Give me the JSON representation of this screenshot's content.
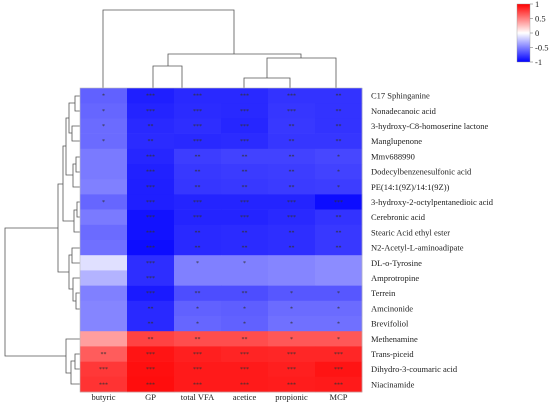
{
  "chart_data": {
    "type": "heatmap",
    "title": "",
    "xlabel": "",
    "ylabel": "",
    "color_scale": {
      "min": -1,
      "max": 1,
      "colors": [
        "#0000ff",
        "#ffffff",
        "#ff0000"
      ],
      "ticks": [
        "1",
        "0.5",
        "0",
        "-0.5",
        "-1"
      ]
    },
    "columns": [
      "butyric",
      "GP",
      "total VFA",
      "acetice",
      "propionic",
      "MCP"
    ],
    "rows": [
      "C17 Sphinganine",
      "Nonadecanoic acid",
      "3-hydroxy-C8-homoserine lactone",
      "Manglupenone",
      "Mmv688990",
      "Dodecylbenzenesulfonic acid",
      "PE(14:1(9Z)/14:1(9Z))",
      "3-hydroxy-2-octylpentanedioic acid",
      "Cerebronic acid",
      "Stearic Acid ethyl ester",
      "N2-Acetyl-L-aminoadipate",
      "DL-o-Tyrosine",
      "Amprotropine",
      "Terrein",
      "Amcinonide",
      "Brevifoliol",
      "Methenamine",
      "Trans-piceid",
      "Dihydro-3-coumaric acid",
      "Niacinamide"
    ],
    "values": [
      [
        -0.62,
        -0.88,
        -0.84,
        -0.84,
        -0.8,
        -0.8
      ],
      [
        -0.6,
        -0.86,
        -0.83,
        -0.84,
        -0.79,
        -0.8
      ],
      [
        -0.58,
        -0.84,
        -0.82,
        -0.85,
        -0.78,
        -0.8
      ],
      [
        -0.58,
        -0.83,
        -0.84,
        -0.83,
        -0.79,
        -0.79
      ],
      [
        -0.52,
        -0.85,
        -0.76,
        -0.74,
        -0.74,
        -0.72
      ],
      [
        -0.52,
        -0.87,
        -0.78,
        -0.77,
        -0.76,
        -0.74
      ],
      [
        -0.5,
        -0.88,
        -0.79,
        -0.78,
        -0.77,
        -0.76
      ],
      [
        -0.6,
        -0.88,
        -0.86,
        -0.86,
        -0.86,
        -0.95
      ],
      [
        -0.52,
        -0.93,
        -0.86,
        -0.86,
        -0.84,
        -0.8
      ],
      [
        -0.58,
        -0.93,
        -0.84,
        -0.83,
        -0.82,
        -0.78
      ],
      [
        -0.56,
        -0.95,
        -0.84,
        -0.83,
        -0.82,
        -0.78
      ],
      [
        -0.12,
        -0.82,
        -0.5,
        -0.5,
        -0.48,
        -0.45
      ],
      [
        -0.3,
        -0.82,
        -0.5,
        -0.5,
        -0.48,
        -0.45
      ],
      [
        -0.5,
        -0.9,
        -0.7,
        -0.7,
        -0.66,
        -0.66
      ],
      [
        -0.48,
        -0.84,
        -0.62,
        -0.63,
        -0.58,
        -0.58
      ],
      [
        -0.48,
        -0.84,
        -0.6,
        -0.62,
        -0.56,
        -0.56
      ],
      [
        0.38,
        0.74,
        0.7,
        0.7,
        0.66,
        0.66
      ],
      [
        0.64,
        0.92,
        0.88,
        0.86,
        0.85,
        0.85
      ],
      [
        0.78,
        0.94,
        0.9,
        0.9,
        0.88,
        0.92
      ],
      [
        0.8,
        0.95,
        0.9,
        0.9,
        0.89,
        0.9
      ]
    ],
    "significance": [
      [
        "*",
        "***",
        "***",
        "***",
        "***",
        "**"
      ],
      [
        "*",
        "***",
        "***",
        "***",
        "***",
        "**"
      ],
      [
        "*",
        "**",
        "***",
        "***",
        "**",
        "**"
      ],
      [
        "*",
        "**",
        "***",
        "***",
        "**",
        "**"
      ],
      [
        "",
        "***",
        "**",
        "**",
        "**",
        "*"
      ],
      [
        "",
        "***",
        "**",
        "**",
        "**",
        "*"
      ],
      [
        "",
        "***",
        "**",
        "**",
        "**",
        "*"
      ],
      [
        "*",
        "***",
        "***",
        "***",
        "***",
        "***"
      ],
      [
        "",
        "***",
        "***",
        "***",
        "***",
        "**"
      ],
      [
        "",
        "***",
        "**",
        "**",
        "**",
        "**"
      ],
      [
        "",
        "***",
        "**",
        "**",
        "**",
        "**"
      ],
      [
        "",
        "***",
        "*",
        "*",
        "",
        ""
      ],
      [
        "",
        "***",
        "",
        "",
        "",
        ""
      ],
      [
        "",
        "***",
        "**",
        "**",
        "*",
        "*"
      ],
      [
        "",
        "**",
        "*",
        "*",
        "*",
        "*"
      ],
      [
        "",
        "**",
        "*",
        "*",
        "*",
        "*"
      ],
      [
        "",
        "**",
        "**",
        "**",
        "*",
        "*"
      ],
      [
        "**",
        "***",
        "***",
        "***",
        "***",
        "***"
      ],
      [
        "***",
        "***",
        "***",
        "***",
        "***",
        "***"
      ],
      [
        "***",
        "***",
        "***",
        "***",
        "***",
        "***"
      ]
    ],
    "legend_position": "top-right",
    "grid": false
  }
}
